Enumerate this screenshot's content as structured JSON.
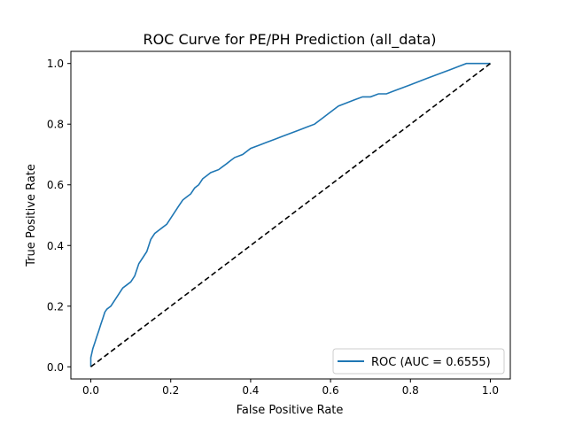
{
  "chart_data": {
    "type": "line",
    "title": "ROC Curve for PE/PH Prediction (all_data)",
    "xlabel": "False Positive Rate",
    "ylabel": "True Positive Rate",
    "xlim": [
      -0.05,
      1.05
    ],
    "ylim": [
      -0.04,
      1.04
    ],
    "xticks": [
      0.0,
      0.2,
      0.4,
      0.6,
      0.8,
      1.0
    ],
    "yticks": [
      0.0,
      0.2,
      0.4,
      0.6,
      0.8,
      1.0
    ],
    "xtick_labels": [
      "0.0",
      "0.2",
      "0.4",
      "0.6",
      "0.8",
      "1.0"
    ],
    "ytick_labels": [
      "0.0",
      "0.2",
      "0.4",
      "0.6",
      "0.8",
      "1.0"
    ],
    "grid": false,
    "legend_position": "lower-right",
    "series": [
      {
        "name": "ROC (AUC = 0.6555)",
        "color": "#1f77b4",
        "style": "solid",
        "x": [
          0.0,
          0.0,
          0.005,
          0.01,
          0.015,
          0.02,
          0.025,
          0.03,
          0.035,
          0.04,
          0.045,
          0.05,
          0.06,
          0.07,
          0.08,
          0.09,
          0.1,
          0.11,
          0.12,
          0.13,
          0.14,
          0.15,
          0.16,
          0.17,
          0.18,
          0.19,
          0.2,
          0.21,
          0.22,
          0.23,
          0.24,
          0.25,
          0.26,
          0.27,
          0.28,
          0.29,
          0.3,
          0.31,
          0.32,
          0.33,
          0.34,
          0.35,
          0.36,
          0.38,
          0.4,
          0.42,
          0.44,
          0.46,
          0.48,
          0.5,
          0.52,
          0.54,
          0.56,
          0.58,
          0.6,
          0.62,
          0.64,
          0.66,
          0.68,
          0.7,
          0.72,
          0.74,
          0.76,
          0.78,
          0.8,
          0.82,
          0.84,
          0.86,
          0.88,
          0.9,
          0.92,
          0.94,
          0.96,
          0.98,
          1.0
        ],
        "y": [
          0.0,
          0.03,
          0.06,
          0.08,
          0.1,
          0.12,
          0.14,
          0.16,
          0.18,
          0.19,
          0.195,
          0.2,
          0.22,
          0.24,
          0.26,
          0.27,
          0.28,
          0.3,
          0.34,
          0.36,
          0.38,
          0.42,
          0.44,
          0.45,
          0.46,
          0.47,
          0.49,
          0.51,
          0.53,
          0.55,
          0.56,
          0.57,
          0.59,
          0.6,
          0.62,
          0.63,
          0.64,
          0.645,
          0.65,
          0.66,
          0.67,
          0.68,
          0.69,
          0.7,
          0.72,
          0.73,
          0.74,
          0.75,
          0.76,
          0.77,
          0.78,
          0.79,
          0.8,
          0.82,
          0.84,
          0.86,
          0.87,
          0.88,
          0.89,
          0.89,
          0.9,
          0.9,
          0.91,
          0.92,
          0.93,
          0.94,
          0.95,
          0.96,
          0.97,
          0.98,
          0.99,
          1.0,
          1.0,
          1.0,
          1.0
        ]
      },
      {
        "name": "",
        "color": "#000000",
        "style": "dashed",
        "x": [
          0.0,
          1.0
        ],
        "y": [
          0.0,
          1.0
        ]
      }
    ]
  }
}
